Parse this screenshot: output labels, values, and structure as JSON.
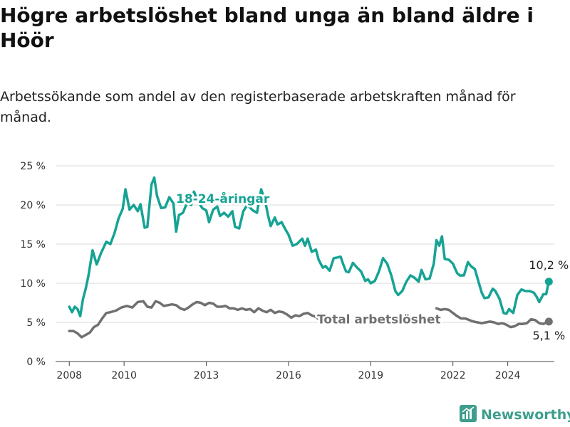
{
  "title": "Högre arbetslöshet bland unga än bland äldre i Höör",
  "subtitle": "Arbetssökande som andel av den registerbaserade arbetskraften månad för månad.",
  "brand": {
    "name": "Newsworthy",
    "icon": "newsworthy-logo-icon"
  },
  "colors": {
    "youth": "#16a394",
    "total": "#707070",
    "grid": "#d9d9d9",
    "text": "#333333",
    "brand": "#3d9e8c"
  },
  "chart_data": {
    "type": "line",
    "title": "Högre arbetslöshet bland unga än bland äldre i Höör",
    "xlabel": "",
    "ylabel": "",
    "xlim": [
      2007.5,
      2025.7
    ],
    "ylim": [
      0,
      25
    ],
    "x_ticks": [
      2008,
      2010,
      2013,
      2016,
      2019,
      2022,
      2024
    ],
    "y_ticks": [
      {
        "value": 0,
        "label": "0 %"
      },
      {
        "value": 5,
        "label": "5 %"
      },
      {
        "value": 10,
        "label": "10 %"
      },
      {
        "value": 15,
        "label": "15 %"
      },
      {
        "value": 20,
        "label": "20 %"
      },
      {
        "value": 25,
        "label": "25 %"
      }
    ],
    "grid": true,
    "series": [
      {
        "name": "18-24-åringar",
        "label": "18-24-åringar",
        "end_label": "10,2 %",
        "points": [
          [
            2008.0,
            7.0
          ],
          [
            2008.1,
            6.3
          ],
          [
            2008.2,
            7.0
          ],
          [
            2008.3,
            6.7
          ],
          [
            2008.4,
            5.8
          ],
          [
            2008.5,
            8.0
          ],
          [
            2008.6,
            9.3
          ],
          [
            2008.7,
            11.0
          ],
          [
            2008.85,
            14.2
          ],
          [
            2009.0,
            12.4
          ],
          [
            2009.15,
            13.8
          ],
          [
            2009.35,
            15.3
          ],
          [
            2009.5,
            15.0
          ],
          [
            2009.65,
            16.4
          ],
          [
            2009.8,
            18.3
          ],
          [
            2009.95,
            19.5
          ],
          [
            2010.05,
            22.0
          ],
          [
            2010.2,
            19.4
          ],
          [
            2010.35,
            20.0
          ],
          [
            2010.5,
            19.2
          ],
          [
            2010.6,
            20.1
          ],
          [
            2010.75,
            17.1
          ],
          [
            2010.85,
            17.2
          ],
          [
            2011.0,
            22.6
          ],
          [
            2011.1,
            23.5
          ],
          [
            2011.2,
            21.2
          ],
          [
            2011.35,
            19.6
          ],
          [
            2011.5,
            19.7
          ],
          [
            2011.65,
            21.0
          ],
          [
            2011.8,
            20.2
          ],
          [
            2011.9,
            16.6
          ],
          [
            2012.0,
            18.7
          ],
          [
            2012.15,
            19.0
          ],
          [
            2012.3,
            20.3
          ],
          [
            2012.45,
            20.0
          ],
          [
            2012.55,
            21.7
          ],
          [
            2012.7,
            20.5
          ],
          [
            2012.85,
            19.6
          ],
          [
            2013.0,
            19.3
          ],
          [
            2013.1,
            17.8
          ],
          [
            2013.25,
            19.4
          ],
          [
            2013.4,
            19.8
          ],
          [
            2013.5,
            18.6
          ],
          [
            2013.65,
            19.0
          ],
          [
            2013.8,
            18.5
          ],
          [
            2013.95,
            19.2
          ],
          [
            2014.05,
            17.2
          ],
          [
            2014.2,
            17.0
          ],
          [
            2014.35,
            19.2
          ],
          [
            2014.5,
            20.0
          ],
          [
            2014.7,
            19.3
          ],
          [
            2014.85,
            19.0
          ],
          [
            2015.0,
            22.0
          ],
          [
            2015.15,
            20.5
          ],
          [
            2015.25,
            18.7
          ],
          [
            2015.35,
            17.3
          ],
          [
            2015.5,
            18.4
          ],
          [
            2015.6,
            17.5
          ],
          [
            2015.75,
            17.8
          ],
          [
            2015.85,
            17.1
          ],
          [
            2016.0,
            16.2
          ],
          [
            2016.15,
            14.8
          ],
          [
            2016.3,
            15.0
          ],
          [
            2016.5,
            15.7
          ],
          [
            2016.6,
            14.8
          ],
          [
            2016.7,
            15.7
          ],
          [
            2016.85,
            14.0
          ],
          [
            2017.0,
            14.3
          ],
          [
            2017.1,
            13.0
          ],
          [
            2017.25,
            12.0
          ],
          [
            2017.35,
            12.2
          ],
          [
            2017.5,
            11.6
          ],
          [
            2017.65,
            13.2
          ],
          [
            2017.8,
            13.3
          ],
          [
            2017.9,
            13.4
          ],
          [
            2018.0,
            12.4
          ],
          [
            2018.1,
            11.5
          ],
          [
            2018.2,
            11.4
          ],
          [
            2018.35,
            12.6
          ],
          [
            2018.5,
            12.0
          ],
          [
            2018.65,
            11.5
          ],
          [
            2018.8,
            10.3
          ],
          [
            2018.9,
            10.5
          ],
          [
            2019.0,
            10.0
          ],
          [
            2019.15,
            10.3
          ],
          [
            2019.3,
            11.5
          ],
          [
            2019.45,
            13.2
          ],
          [
            2019.6,
            12.5
          ],
          [
            2019.75,
            11.0
          ],
          [
            2019.9,
            9.0
          ],
          [
            2020.0,
            8.5
          ],
          [
            2020.15,
            9.0
          ],
          [
            2020.3,
            10.2
          ],
          [
            2020.45,
            11.0
          ],
          [
            2020.6,
            10.7
          ],
          [
            2020.75,
            10.2
          ],
          [
            2020.85,
            11.7
          ],
          [
            2021.0,
            10.5
          ],
          [
            2021.15,
            10.6
          ],
          [
            2021.3,
            12.5
          ],
          [
            2021.4,
            15.5
          ],
          [
            2021.5,
            14.8
          ],
          [
            2021.6,
            16.0
          ],
          [
            2021.7,
            13.1
          ],
          [
            2021.85,
            13.0
          ],
          [
            2022.0,
            12.5
          ],
          [
            2022.15,
            11.3
          ],
          [
            2022.25,
            11.0
          ],
          [
            2022.4,
            11.0
          ],
          [
            2022.55,
            12.7
          ],
          [
            2022.65,
            12.2
          ],
          [
            2022.8,
            11.8
          ],
          [
            2022.95,
            10.0
          ],
          [
            2023.05,
            8.8
          ],
          [
            2023.15,
            8.1
          ],
          [
            2023.3,
            8.2
          ],
          [
            2023.45,
            9.3
          ],
          [
            2023.55,
            9.0
          ],
          [
            2023.7,
            8.0
          ],
          [
            2023.85,
            6.2
          ],
          [
            2023.95,
            6.1
          ],
          [
            2024.05,
            6.7
          ],
          [
            2024.2,
            6.2
          ],
          [
            2024.35,
            8.5
          ],
          [
            2024.5,
            9.2
          ],
          [
            2024.65,
            9.0
          ],
          [
            2024.8,
            9.0
          ],
          [
            2024.95,
            8.8
          ],
          [
            2025.05,
            8.3
          ],
          [
            2025.15,
            7.6
          ],
          [
            2025.3,
            8.6
          ],
          [
            2025.4,
            8.6
          ],
          [
            2025.5,
            10.2
          ]
        ]
      },
      {
        "name": "Total arbetslöshet",
        "label": "Total arbetslöshet",
        "end_label": "5,1 %",
        "points": [
          [
            2008.0,
            3.9
          ],
          [
            2008.15,
            3.9
          ],
          [
            2008.3,
            3.6
          ],
          [
            2008.45,
            3.1
          ],
          [
            2008.6,
            3.4
          ],
          [
            2008.75,
            3.7
          ],
          [
            2008.9,
            4.4
          ],
          [
            2009.05,
            4.7
          ],
          [
            2009.2,
            5.5
          ],
          [
            2009.35,
            6.2
          ],
          [
            2009.5,
            6.3
          ],
          [
            2009.7,
            6.5
          ],
          [
            2009.9,
            6.9
          ],
          [
            2010.1,
            7.1
          ],
          [
            2010.3,
            6.9
          ],
          [
            2010.5,
            7.6
          ],
          [
            2010.7,
            7.7
          ],
          [
            2010.85,
            7.0
          ],
          [
            2011.0,
            6.9
          ],
          [
            2011.15,
            7.7
          ],
          [
            2011.3,
            7.5
          ],
          [
            2011.45,
            7.1
          ],
          [
            2011.6,
            7.2
          ],
          [
            2011.75,
            7.3
          ],
          [
            2011.9,
            7.2
          ],
          [
            2012.05,
            6.8
          ],
          [
            2012.2,
            6.6
          ],
          [
            2012.35,
            6.9
          ],
          [
            2012.5,
            7.3
          ],
          [
            2012.65,
            7.6
          ],
          [
            2012.8,
            7.5
          ],
          [
            2012.95,
            7.2
          ],
          [
            2013.1,
            7.5
          ],
          [
            2013.25,
            7.4
          ],
          [
            2013.4,
            7.0
          ],
          [
            2013.55,
            7.0
          ],
          [
            2013.7,
            7.1
          ],
          [
            2013.85,
            6.8
          ],
          [
            2014.0,
            6.8
          ],
          [
            2014.15,
            6.6
          ],
          [
            2014.3,
            6.8
          ],
          [
            2014.45,
            6.6
          ],
          [
            2014.6,
            6.7
          ],
          [
            2014.75,
            6.3
          ],
          [
            2014.9,
            6.8
          ],
          [
            2015.05,
            6.5
          ],
          [
            2015.2,
            6.3
          ],
          [
            2015.35,
            6.6
          ],
          [
            2015.5,
            6.2
          ],
          [
            2015.65,
            6.4
          ],
          [
            2015.8,
            6.3
          ],
          [
            2015.95,
            6.0
          ],
          [
            2016.1,
            5.6
          ],
          [
            2016.25,
            5.9
          ],
          [
            2016.4,
            5.8
          ],
          [
            2016.55,
            6.1
          ],
          [
            2016.7,
            6.2
          ],
          [
            2016.85,
            5.9
          ],
          [
            2017.0,
            5.7
          ],
          [
            2017.15,
            5.3
          ]
        ],
        "points_tail": [
          [
            2021.4,
            6.8
          ],
          [
            2021.55,
            6.6
          ],
          [
            2021.7,
            6.7
          ],
          [
            2021.85,
            6.6
          ],
          [
            2022.0,
            6.2
          ],
          [
            2022.15,
            5.8
          ],
          [
            2022.3,
            5.5
          ],
          [
            2022.45,
            5.5
          ],
          [
            2022.6,
            5.3
          ],
          [
            2022.75,
            5.1
          ],
          [
            2022.9,
            5.0
          ],
          [
            2023.05,
            4.9
          ],
          [
            2023.2,
            5.0
          ],
          [
            2023.35,
            5.1
          ],
          [
            2023.5,
            5.0
          ],
          [
            2023.65,
            4.8
          ],
          [
            2023.8,
            4.9
          ],
          [
            2023.95,
            4.7
          ],
          [
            2024.1,
            4.4
          ],
          [
            2024.25,
            4.5
          ],
          [
            2024.4,
            4.8
          ],
          [
            2024.55,
            4.8
          ],
          [
            2024.7,
            4.9
          ],
          [
            2024.85,
            5.4
          ],
          [
            2025.0,
            5.3
          ],
          [
            2025.15,
            4.9
          ],
          [
            2025.3,
            4.8
          ],
          [
            2025.5,
            5.1
          ]
        ]
      }
    ]
  }
}
